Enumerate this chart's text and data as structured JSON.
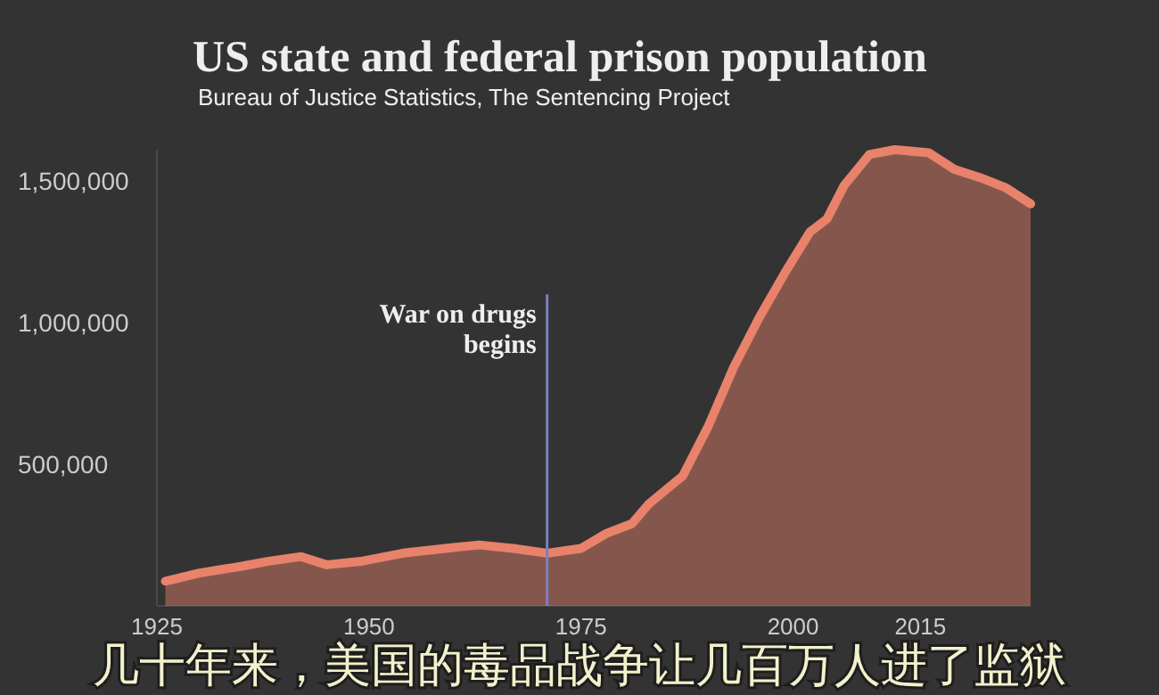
{
  "chart_data": {
    "type": "area",
    "title": "US state and federal prison population",
    "subtitle": "Bureau of Justice Statistics, The Sentencing Project",
    "x": [
      1926,
      1930,
      1935,
      1938,
      1942,
      1945,
      1949,
      1954,
      1959,
      1963,
      1967,
      1971,
      1975,
      1978,
      1981,
      1983,
      1987,
      1990,
      1993,
      1996,
      1999,
      2002,
      2004,
      2006,
      2009,
      2012,
      2016,
      2019,
      2022,
      2025,
      2028
    ],
    "series": [
      {
        "color": "#e8826a",
        "values": [
          87000,
          116000,
          140000,
          157000,
          174000,
          145000,
          157000,
          186000,
          203000,
          215000,
          203000,
          186000,
          203000,
          256000,
          290000,
          360000,
          459000,
          634000,
          843000,
          1017000,
          1174000,
          1320000,
          1366000,
          1483000,
          1593000,
          1610000,
          1599000,
          1541000,
          1512000,
          1477000,
          1419000
        ]
      }
    ],
    "xlim": [
      1925,
      2028
    ],
    "ylim": [
      0,
      1610000
    ],
    "xticks": [
      1925,
      1950,
      1975,
      2000,
      2015
    ],
    "yticks": [
      {
        "value": 500000,
        "label": "500,000"
      },
      {
        "value": 1000000,
        "label": "1,000,000"
      },
      {
        "value": 1500000,
        "label": "1,500,000"
      }
    ],
    "ref_lines": [
      {
        "axis": "x",
        "value": 1971,
        "label": "War on drugs begins",
        "color": "#7b7fc0"
      }
    ],
    "grid": false,
    "marker": "none",
    "line_style": "solid",
    "annotations": [
      "几十年来，美国的毒品战争让几百万人进了监狱"
    ]
  }
}
